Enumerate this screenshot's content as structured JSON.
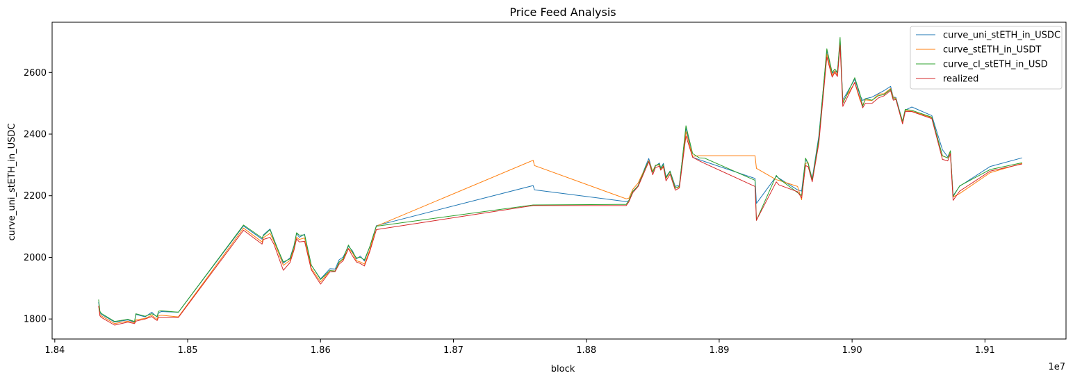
{
  "chart_data": {
    "type": "line",
    "title": "Price Feed Analysis",
    "xlabel": "block",
    "ylabel": "curve_uni_stETH_in_USDC",
    "x_offset_label": "1e7",
    "xlim": [
      18398000,
      19161000
    ],
    "ylim": [
      1735,
      2763
    ],
    "x_ticks": [
      18400000,
      18500000,
      18600000,
      18700000,
      18800000,
      18900000,
      19000000,
      19100000
    ],
    "x_tick_labels": [
      "1.84",
      "1.85",
      "1.86",
      "1.87",
      "1.88",
      "1.89",
      "1.90",
      "1.91"
    ],
    "y_ticks": [
      1800,
      2000,
      2200,
      2400,
      2600
    ],
    "y_tick_labels": [
      "1800",
      "2000",
      "2200",
      "2400",
      "2600"
    ],
    "grid": false,
    "legend_position": "top-right",
    "x": [
      18433000,
      18434000,
      18435000,
      18445000,
      18455000,
      18460000,
      18461000,
      18468000,
      18473000,
      18475000,
      18477000,
      18478000,
      18480000,
      18493000,
      18542000,
      18556000,
      18557000,
      18562000,
      18565000,
      18572000,
      18577000,
      18580000,
      18582000,
      18584000,
      18588000,
      18593000,
      18600000,
      18607000,
      18611000,
      18614000,
      18617000,
      18621000,
      18624000,
      18627000,
      18630000,
      18633000,
      18637000,
      18642000,
      18760000,
      18761000,
      18830000,
      18832000,
      18835000,
      18839000,
      18841000,
      18845000,
      18847000,
      18850000,
      18852000,
      18855000,
      18856000,
      18858000,
      18860000,
      18863000,
      18867000,
      18870000,
      18875000,
      18880000,
      18885000,
      18889000,
      18927000,
      18928000,
      18943000,
      18945000,
      18959000,
      18962000,
      18965000,
      18967000,
      18970000,
      18975000,
      18981000,
      18985000,
      18987000,
      18989000,
      18991000,
      18993000,
      19002000,
      19006000,
      19008000,
      19010000,
      19015000,
      19020000,
      19024000,
      19029000,
      19031000,
      19033000,
      19038000,
      19040000,
      19045000,
      19060000,
      19068000,
      19072000,
      19074000,
      19076000,
      19081000,
      19104000,
      19128000
    ],
    "series": [
      {
        "name": "curve_uni_stETH_in_USDC",
        "color": "#1f77b4",
        "values": [
          1855,
          1821,
          1815,
          1790,
          1797,
          1790,
          1815,
          1807,
          1822,
          1814,
          1806,
          1819,
          1824,
          1822,
          2102,
          2059,
          2073,
          2092,
          2058,
          1981,
          1998,
          2038,
          2078,
          2065,
          2075,
          1975,
          1930,
          1963,
          1962,
          1992,
          2001,
          2036,
          2021,
          1995,
          2004,
          1988,
          2034,
          2103,
          2233,
          2219,
          2181,
          2184,
          2211,
          2233,
          2257,
          2300,
          2321,
          2277,
          2296,
          2306,
          2290,
          2305,
          2261,
          2280,
          2230,
          2235,
          2420,
          2325,
          2317,
          2311,
          2256,
          2175,
          2263,
          2257,
          2219,
          2215,
          2319,
          2303,
          2256,
          2394,
          2671,
          2597,
          2605,
          2599,
          2709,
          2511,
          2578,
          2526,
          2509,
          2515,
          2520,
          2532,
          2541,
          2555,
          2520,
          2519,
          2440,
          2478,
          2488,
          2460,
          2349,
          2326,
          2345,
          2200,
          2231,
          2295,
          2323
        ]
      },
      {
        "name": "curve_stETH_in_USDT",
        "color": "#ff7f0e",
        "values": [
          1843,
          1815,
          1810,
          1785,
          1793,
          1788,
          1797,
          1802,
          1812,
          1805,
          1799,
          1810,
          1812,
          1807,
          2095,
          2050,
          2064,
          2078,
          2051,
          1974,
          1990,
          2027,
          2065,
          2058,
          2063,
          1965,
          1920,
          1957,
          1956,
          1983,
          1994,
          2029,
          2015,
          1989,
          1985,
          1978,
          2023,
          2101,
          2315,
          2298,
          2190,
          2192,
          2221,
          2241,
          2260,
          2294,
          2314,
          2279,
          2299,
          2299,
          2283,
          2293,
          2256,
          2277,
          2226,
          2228,
          2408,
          2328,
          2330,
          2330,
          2330,
          2289,
          2252,
          2250,
          2230,
          2187,
          2305,
          2307,
          2250,
          2381,
          2660,
          2590,
          2605,
          2592,
          2695,
          2505,
          2566,
          2510,
          2495,
          2511,
          2509,
          2530,
          2531,
          2548,
          2519,
          2516,
          2436,
          2476,
          2474,
          2453,
          2329,
          2323,
          2339,
          2196,
          2207,
          2275,
          2305
        ]
      },
      {
        "name": "curve_cl_stETH_in_USD",
        "color": "#2ca02c",
        "values": [
          1863,
          1825,
          1818,
          1792,
          1799,
          1792,
          1817,
          1809,
          1817,
          1813,
          1808,
          1825,
          1827,
          1822,
          2105,
          2063,
          2070,
          2090,
          2055,
          1985,
          1995,
          2035,
          2080,
          2072,
          2073,
          1975,
          1928,
          1957,
          1955,
          1985,
          1996,
          2040,
          2017,
          1998,
          2000,
          1992,
          2034,
          2101,
          2170,
          2170,
          2172,
          2185,
          2215,
          2232,
          2253,
          2297,
          2311,
          2276,
          2298,
          2303,
          2288,
          2301,
          2258,
          2279,
          2224,
          2231,
          2427,
          2337,
          2323,
          2322,
          2250,
          2120,
          2266,
          2255,
          2210,
          2201,
          2322,
          2305,
          2250,
          2386,
          2677,
          2600,
          2611,
          2600,
          2714,
          2500,
          2583,
          2530,
          2490,
          2515,
          2510,
          2525,
          2528,
          2545,
          2515,
          2514,
          2442,
          2480,
          2477,
          2455,
          2330,
          2322,
          2346,
          2197,
          2232,
          2285,
          2307
        ]
      },
      {
        "name": "realized",
        "color": "#d62728",
        "values": [
          1843,
          1810,
          1805,
          1780,
          1790,
          1785,
          1793,
          1800,
          1808,
          1801,
          1795,
          1805,
          1805,
          1805,
          2088,
          2043,
          2058,
          2065,
          2042,
          1958,
          1983,
          2023,
          2060,
          2050,
          2052,
          1960,
          1913,
          1953,
          1954,
          1978,
          1989,
          2028,
          2005,
          1985,
          1980,
          1972,
          2018,
          2090,
          2168,
          2168,
          2168,
          2180,
          2210,
          2230,
          2250,
          2290,
          2310,
          2268,
          2291,
          2296,
          2283,
          2296,
          2248,
          2270,
          2218,
          2225,
          2394,
          2325,
          2313,
          2305,
          2230,
          2120,
          2245,
          2235,
          2213,
          2193,
          2298,
          2294,
          2245,
          2370,
          2650,
          2585,
          2600,
          2587,
          2688,
          2490,
          2568,
          2515,
          2485,
          2500,
          2500,
          2518,
          2524,
          2541,
          2510,
          2512,
          2433,
          2473,
          2473,
          2450,
          2318,
          2313,
          2336,
          2185,
          2215,
          2280,
          2303
        ]
      }
    ]
  }
}
